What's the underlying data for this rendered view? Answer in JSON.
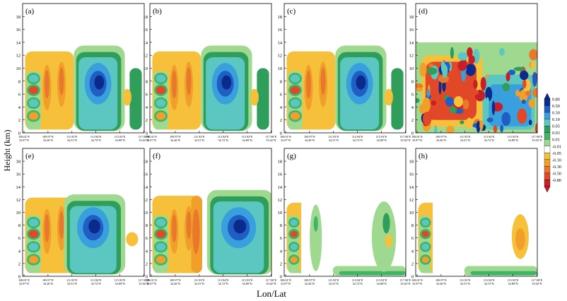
{
  "chart_data": {
    "type": "heatmap",
    "layout": "2x4 panel grid of vertical cross-section contour plots",
    "ylabel": "Height (km)",
    "xlabel": "Lon/Lat",
    "ylim": [
      0,
      20
    ],
    "yticks": [
      "0",
      "2",
      "4",
      "6",
      "8",
      "10",
      "12",
      "14",
      "16",
      "18"
    ],
    "xticks": [
      [
        "108.01°E",
        "33.97°N"
      ],
      [
        "109.97°E",
        "34.26°N"
      ],
      [
        "111.93°E",
        "34.51°N"
      ],
      [
        "113.94°E",
        "34.72°N"
      ],
      [
        "115.93°E",
        "34.89°N"
      ],
      [
        "117.90°E",
        "35.02°N"
      ]
    ],
    "panels": [
      {
        "label": "(a)",
        "bands": [
          0,
          0,
          1,
          0,
          0,
          0
        ],
        "pattern": "ensemble"
      },
      {
        "label": "(b)",
        "bands": [
          0,
          0,
          1,
          0,
          0,
          0
        ],
        "pattern": "ensemble"
      },
      {
        "label": "(c)",
        "bands": [
          0,
          0,
          1,
          0,
          0,
          0
        ],
        "pattern": "ensemble"
      },
      {
        "label": "(d)",
        "pattern": "noisy"
      },
      {
        "label": "(e)",
        "pattern": "ensemble_e"
      },
      {
        "label": "(f)",
        "pattern": "ensemble_f"
      },
      {
        "label": "(g)",
        "pattern": "weak_g"
      },
      {
        "label": "(h)",
        "pattern": "weak_h"
      }
    ],
    "colorbar": {
      "levels": [
        "0.80",
        "0.50",
        "0.30",
        "0.10",
        "0.05",
        "0.03",
        "0.01",
        "-0.01",
        "-0.05",
        "-0.10",
        "-0.30",
        "-0.50",
        "-0.80"
      ],
      "colors": [
        "#0a2a8c",
        "#1f5fc4",
        "#3aa0dd",
        "#5cc6c0",
        "#2e9e5a",
        "#3fb56a",
        "#9fd98f",
        "#ffffff",
        "#f7c03a",
        "#f0a02a",
        "#e8782a",
        "#e04828",
        "#c81e2a"
      ]
    }
  }
}
